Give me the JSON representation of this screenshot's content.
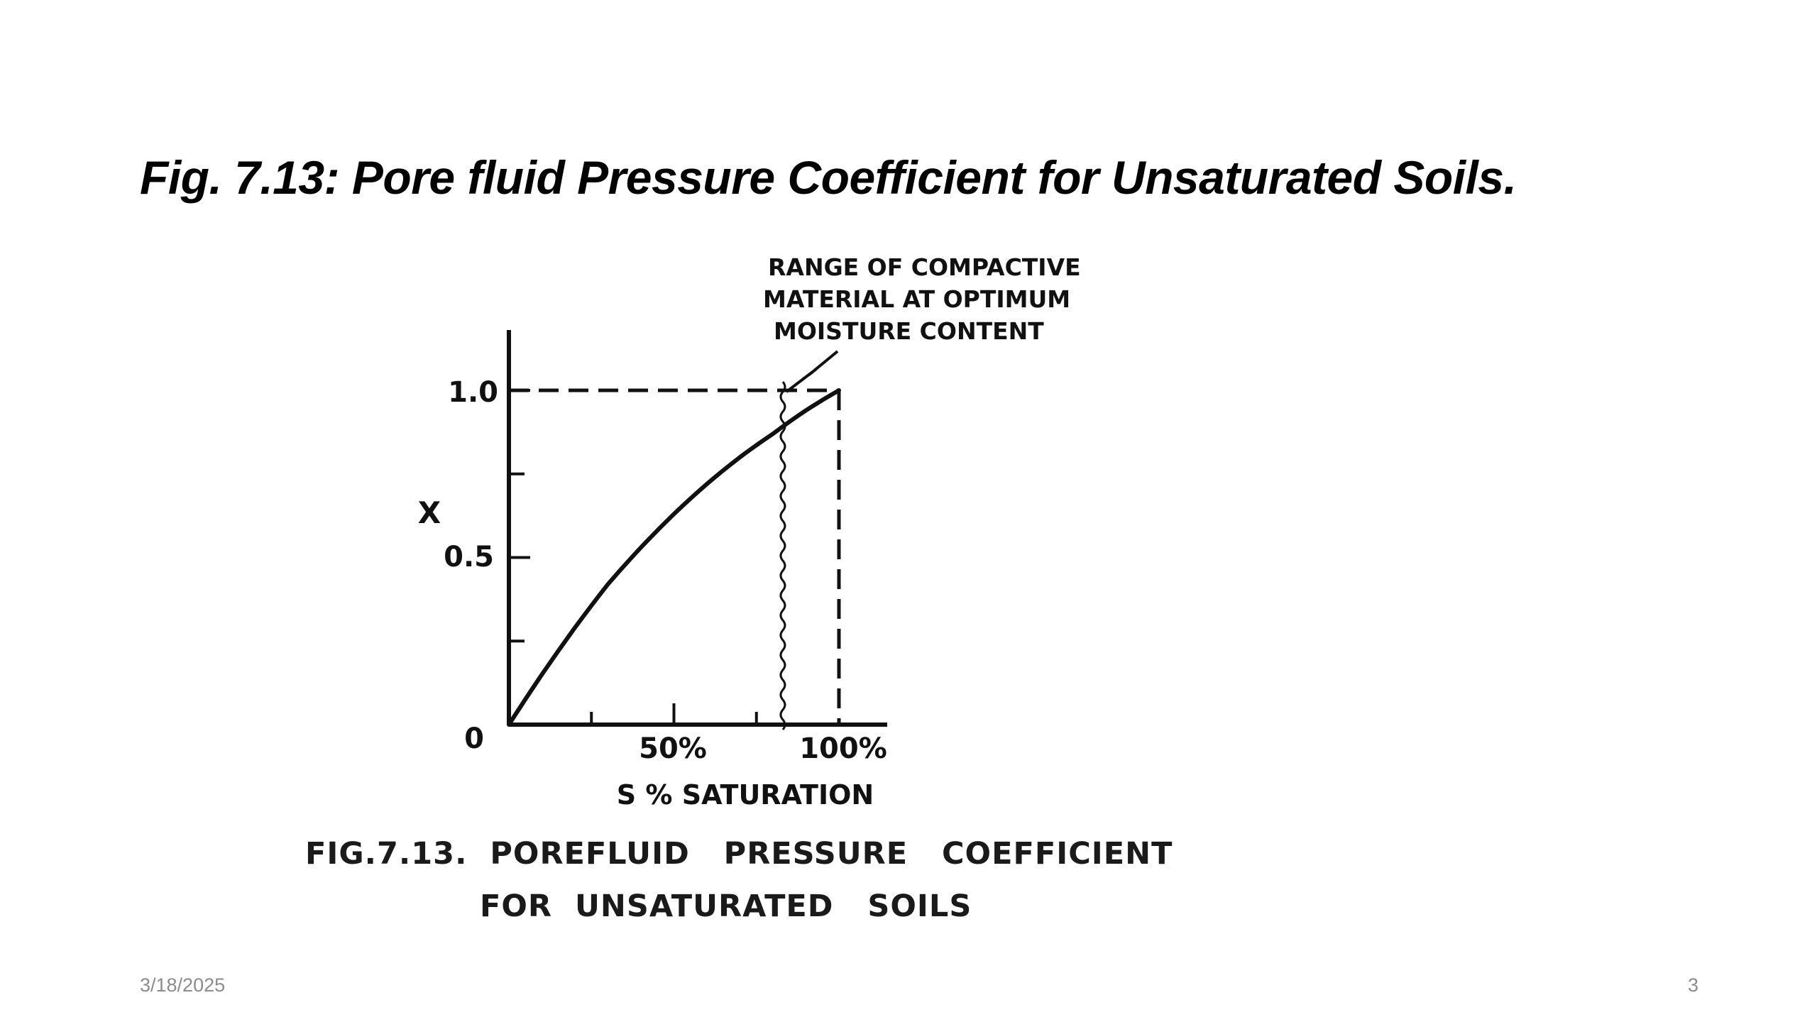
{
  "slide": {
    "title": "Fig. 7.13:  Pore fluid Pressure Coefficient for Unsaturated Soils.",
    "date": "3/18/2025",
    "page_number": "3"
  },
  "figure": {
    "annotation": [
      "RANGE OF COMPACTIVE",
      "MATERIAL AT OPTIMUM",
      "MOISTURE CONTENT"
    ],
    "caption": {
      "line1": "FIG.7.13.  POREFLUID   PRESSURE   COEFFICIENT",
      "line2": "FOR  UNSATURATED   SOILS"
    }
  },
  "chart_data": {
    "type": "line",
    "xlabel": "S %  SATURATION",
    "ylabel": "X",
    "xlim": [
      0,
      100
    ],
    "ylim": [
      0,
      1.0
    ],
    "x_tick_labels": [
      "50%",
      "100%"
    ],
    "y_tick_labels": [
      "0",
      "0.5",
      "1.0"
    ],
    "grid": false,
    "series": [
      {
        "x": [
          0,
          10,
          20,
          30,
          40,
          50,
          60,
          70,
          80,
          90,
          100
        ],
        "y": [
          0,
          0.15,
          0.29,
          0.42,
          0.53,
          0.63,
          0.72,
          0.8,
          0.87,
          0.94,
          1.0
        ]
      }
    ],
    "reference_lines": [
      {
        "kind": "horizontal",
        "y": 1.0,
        "style": "dashed"
      },
      {
        "kind": "vertical",
        "x": 100,
        "style": "dashed"
      },
      {
        "kind": "vertical",
        "x": 83,
        "style": "wavy"
      }
    ]
  }
}
